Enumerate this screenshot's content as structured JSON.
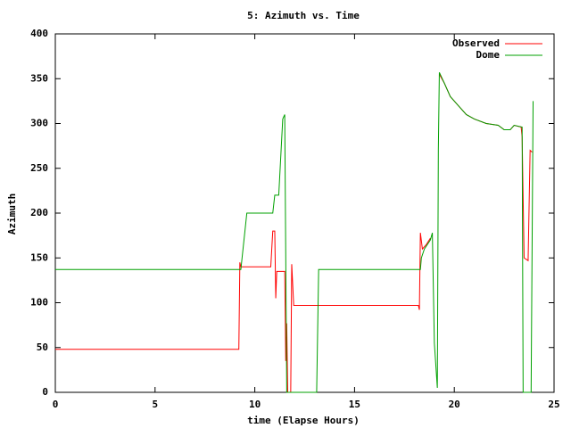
{
  "chart_data": {
    "type": "line",
    "title": "5: Azimuth vs. Time",
    "x_label": "time (Elapse Hours)",
    "y_label": "Azimuth",
    "xlim": [
      0,
      25
    ],
    "xticks": [
      0,
      5,
      10,
      15,
      20,
      25
    ],
    "ylim": [
      0,
      400
    ],
    "yticks": [
      0,
      50,
      100,
      150,
      200,
      250,
      300,
      350,
      400
    ],
    "legend": "top-right",
    "series": [
      {
        "name": "Observed",
        "color": "#ff0000",
        "x": [
          0,
          9.2,
          9.25,
          9.3,
          10.8,
          10.9,
          11.0,
          11.05,
          11.1,
          11.2,
          11.5,
          11.55,
          11.6,
          11.65,
          11.8,
          11.85,
          11.95,
          18.2,
          18.25,
          18.3,
          18.4,
          18.6,
          18.8,
          19.0,
          19.25,
          19.5,
          19.8,
          20.2,
          20.6,
          21.0,
          21.6,
          22.2,
          22.5,
          22.8,
          23.0,
          23.35,
          23.4,
          23.5,
          23.7,
          23.8,
          23.9
        ],
        "values": [
          48,
          48,
          145,
          140,
          140,
          180,
          180,
          105,
          135,
          135,
          135,
          35,
          77,
          0,
          0,
          143,
          97,
          97,
          92,
          178,
          160,
          165,
          172,
          null,
          355,
          345,
          330,
          320,
          310,
          305,
          300,
          298,
          293,
          293,
          298,
          296,
          285,
          150,
          147,
          270,
          268
        ]
      },
      {
        "name": "Dome",
        "color": "#00a000",
        "x": [
          0,
          9.3,
          9.6,
          10.9,
          11.0,
          11.2,
          11.4,
          11.5,
          11.6,
          13.1,
          13.2,
          18.3,
          18.35,
          18.5,
          18.8,
          18.9,
          19.0,
          19.15,
          19.2,
          19.25,
          19.5,
          19.8,
          20.2,
          20.6,
          21.0,
          21.6,
          22.2,
          22.5,
          22.8,
          23.0,
          23.4,
          23.45,
          23.85,
          23.95
        ],
        "values": [
          137,
          137,
          200,
          200,
          220,
          220,
          305,
          310,
          0,
          0,
          137,
          137,
          150,
          160,
          170,
          178,
          55,
          5,
          270,
          357,
          345,
          330,
          320,
          310,
          305,
          300,
          298,
          293,
          293,
          298,
          296,
          0,
          0,
          325
        ]
      }
    ]
  }
}
